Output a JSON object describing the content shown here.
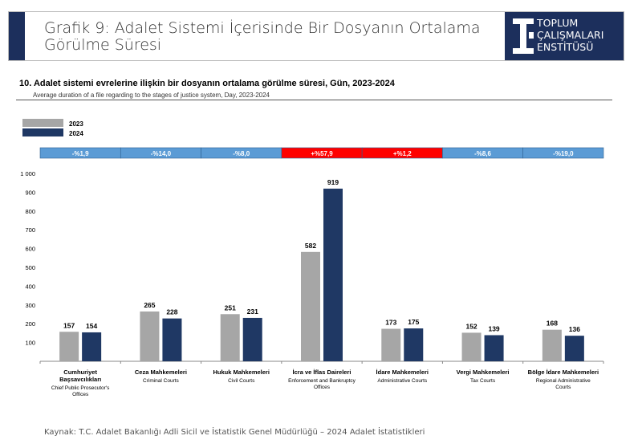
{
  "header": {
    "title_line1": "Grafik 9: Adalet Sistemi İçerisinde Bir Dosyanın Ortalama",
    "title_line2": "Görülme Süresi",
    "logo": [
      "TOPLUM",
      "ÇALIŞMALARI",
      "ENSTİTÜSÜ"
    ]
  },
  "footer": {
    "source": "Kaynak: T.C. Adalet Bakanlığı Adli Sicil ve İstatistik Genel Müdürlüğü – 2024 Adalet İstatistikleri"
  },
  "chart_data": {
    "type": "bar",
    "title": "10. Adalet sistemi evrelerine ilişkin bir dosyanın ortalama görülme süresi, Gün, 2023-2024",
    "subtitle": "Average duration of a file regarding to the stages of justice system, Day, 2023-2024",
    "ylim": [
      0,
      1000
    ],
    "yticks": [
      "100",
      "200",
      "300",
      "400",
      "500",
      "600",
      "700",
      "800",
      "900",
      "1 000"
    ],
    "categories": [
      {
        "tr": "Cumhuriyet Başsavcılıkları",
        "en": "Chief Public Prosecutor's Offices"
      },
      {
        "tr": "Ceza Mahkemeleri",
        "en": "Criminal Courts"
      },
      {
        "tr": "Hukuk Mahkemeleri",
        "en": "Civil Courts"
      },
      {
        "tr": "İcra ve İflas Daireleri",
        "en": "Enforcement and Bankruptcy Offices"
      },
      {
        "tr": "İdare Mahkemeleri",
        "en": "Administrative Courts"
      },
      {
        "tr": "Vergi Mahkemeleri",
        "en": "Tax Courts"
      },
      {
        "tr": "Bölge İdare Mahkemeleri",
        "en": "Regional Administrative Courts"
      }
    ],
    "series": [
      {
        "name": "2023",
        "color": "#a6a6a6",
        "values": [
          157,
          265,
          251,
          582,
          173,
          152,
          168
        ]
      },
      {
        "name": "2024",
        "color": "#1f3864",
        "values": [
          154,
          228,
          231,
          919,
          175,
          139,
          136
        ]
      }
    ],
    "changes": [
      "-%1,9",
      "-%14,0",
      "-%8,0",
      "+%57,9",
      "+%1,2",
      "-%8,6",
      "-%19,0"
    ],
    "change_colors": {
      "negative": "#5b9bd5",
      "positive": "#ff0000"
    },
    "legend": "top-left"
  }
}
